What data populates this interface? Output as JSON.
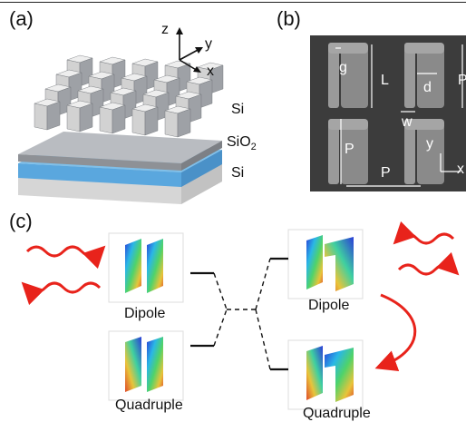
{
  "panels": {
    "a": {
      "label": "(a)",
      "axes": {
        "z": "z",
        "y": "y",
        "x": "x"
      },
      "layers": {
        "si_top": "Si",
        "sio2_base": "SiO",
        "sio2_sub": "2",
        "si_bottom": "Si"
      }
    },
    "b": {
      "label": "(b)",
      "dimensions": {
        "g": "g",
        "L": "L",
        "d": "d",
        "w": "w",
        "P_side": "P",
        "P_left": "P",
        "P_bottom": "P"
      },
      "axes": {
        "y": "y",
        "x": "x"
      }
    },
    "c": {
      "label": "(c)",
      "modes": {
        "left_dipole": "Dipole",
        "left_quadruple": "Quadruple",
        "right_dipole": "Dipole",
        "right_quadruple": "Quadruple"
      }
    }
  },
  "colors": {
    "wave_red": "#e8231b",
    "sem_bg": "#3a3a3a",
    "sio2_blue": "#5aa7de"
  }
}
